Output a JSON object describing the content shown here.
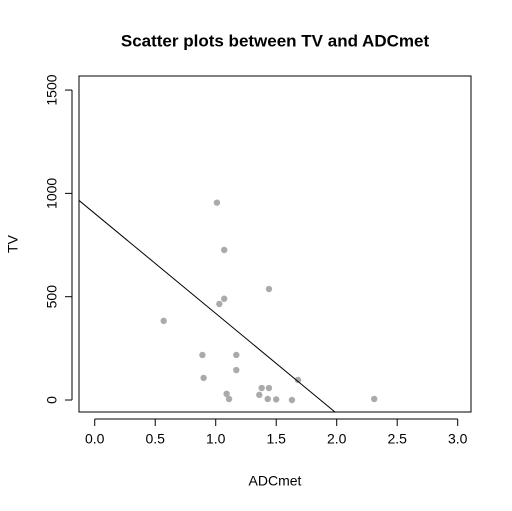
{
  "chart_data": {
    "type": "scatter",
    "title": "Scatter plots between TV and ADCmet",
    "x_label": "ADCmet",
    "y_label": "TV",
    "x": [
      0.57,
      0.89,
      0.9,
      1.01,
      1.03,
      1.07,
      1.07,
      1.09,
      1.11,
      1.17,
      1.17,
      1.36,
      1.38,
      1.43,
      1.44,
      1.44,
      1.5,
      1.63,
      1.68,
      2.31
    ],
    "values": [
      383,
      218,
      107,
      955,
      465,
      726,
      490,
      30,
      5,
      218,
      145,
      25,
      58,
      5,
      58,
      537,
      3,
      0,
      97,
      5
    ],
    "color": "#aaaaaa",
    "fit_line": {
      "intercept": 903,
      "slope": -484
    },
    "xlim": [
      -0.13,
      3.11
    ],
    "ylim": [
      -58,
      1568
    ],
    "xticks": [
      {
        "value": 0,
        "label": "0.0"
      },
      {
        "value": 0.5,
        "label": "0.5"
      },
      {
        "value": 1,
        "label": "1.0"
      },
      {
        "value": 1.5,
        "label": "1.5"
      },
      {
        "value": 2,
        "label": "2.0"
      },
      {
        "value": 2.5,
        "label": "2.5"
      },
      {
        "value": 3,
        "label": "3.0"
      }
    ],
    "yticks": [
      0,
      500,
      1000,
      1500
    ]
  }
}
